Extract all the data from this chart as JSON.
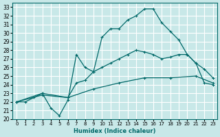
{
  "xlabel": "Humidex (Indice chaleur)",
  "bg_color": "#c8e8e8",
  "grid_color": "#ffffff",
  "line_color": "#006868",
  "xlim": [
    -0.5,
    23.5
  ],
  "ylim": [
    20,
    33.5
  ],
  "yticks": [
    20,
    21,
    22,
    23,
    24,
    25,
    26,
    27,
    28,
    29,
    30,
    31,
    32,
    33
  ],
  "xticks": [
    0,
    1,
    2,
    3,
    4,
    5,
    6,
    7,
    8,
    9,
    10,
    11,
    12,
    13,
    14,
    15,
    16,
    17,
    18,
    19,
    20,
    21,
    22,
    23
  ],
  "line1_x": [
    0,
    1,
    2,
    3,
    4,
    5,
    6,
    7,
    8,
    9,
    10,
    11,
    12,
    13,
    14,
    15,
    16,
    17,
    18,
    19,
    20,
    21,
    22,
    23
  ],
  "line1_y": [
    22.0,
    22.0,
    22.5,
    23.0,
    21.3,
    20.4,
    22.2,
    27.5,
    26.0,
    25.5,
    29.5,
    30.5,
    30.5,
    31.5,
    32.0,
    32.8,
    32.8,
    31.2,
    30.2,
    29.2,
    27.5,
    26.5,
    24.2,
    24.0
  ],
  "line2_x": [
    0,
    3,
    6,
    7,
    8,
    9,
    10,
    11,
    12,
    13,
    14,
    15,
    16,
    17,
    18,
    19,
    20,
    21,
    22,
    23
  ],
  "line2_y": [
    22.0,
    23.0,
    22.5,
    24.2,
    24.5,
    25.5,
    26.0,
    26.5,
    27.0,
    27.5,
    28.0,
    27.8,
    27.5,
    27.0,
    27.2,
    27.5,
    27.5,
    26.5,
    25.8,
    24.8
  ],
  "line3_x": [
    0,
    3,
    6,
    9,
    12,
    15,
    18,
    21,
    23
  ],
  "line3_y": [
    22.0,
    22.8,
    22.5,
    23.5,
    24.2,
    24.8,
    24.8,
    25.0,
    24.2
  ]
}
